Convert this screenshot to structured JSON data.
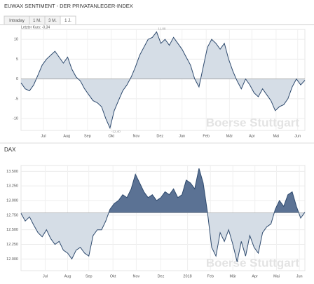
{
  "header": {
    "title": "EUWAX SENTIMENT - DER PRIVATANLEGER-INDEX",
    "tabs": [
      "Intraday",
      "1 M.",
      "3 M.",
      "1 J."
    ],
    "active_tab": 3,
    "last_price": "Letzter Kurs: -0,34"
  },
  "chart_data": [
    {
      "type": "area",
      "title": null,
      "watermark": "Boerse Stuttgart",
      "series": [
        {
          "name": "EUWAX Sentiment",
          "color": "#2e4a6e",
          "values": [
            -1,
            -2.5,
            -3,
            -1.5,
            1,
            3.5,
            5,
            6,
            7,
            5.5,
            4,
            5.5,
            2.5,
            0.5,
            -0.5,
            -2.5,
            -4,
            -5.5,
            -6,
            -7,
            -10,
            -12.4,
            -8,
            -5.5,
            -3,
            -1.5,
            0.5,
            3,
            6,
            8,
            10,
            10.5,
            11.89,
            9,
            10,
            8.5,
            10.5,
            9,
            7.5,
            5.5,
            3.5,
            0,
            -2,
            3,
            8,
            10,
            9,
            7.5,
            9,
            5,
            2,
            -0.5,
            -2.5,
            0,
            -1.5,
            -3.5,
            -4.5,
            -2.5,
            -4,
            -5.5,
            -8,
            -7,
            -6.5,
            -5,
            -2,
            0,
            -1.5,
            -0.34
          ]
        }
      ],
      "baseline": 0,
      "fill_above": "#d5dde6",
      "fill_below": "#d5dde6",
      "annotations": [
        {
          "label": "11,89",
          "index": 32
        },
        {
          "label": "-12,40",
          "index": 21
        }
      ],
      "xlim": [
        0,
        67
      ],
      "xticks": [
        {
          "value": 5.3,
          "label": "Jul"
        },
        {
          "value": 10.8,
          "label": "Aug"
        },
        {
          "value": 15.7,
          "label": "Sep"
        },
        {
          "value": 21.3,
          "label": "Okt"
        },
        {
          "value": 27.2,
          "label": "Nov"
        },
        {
          "value": 32.8,
          "label": "Dez"
        },
        {
          "value": 38,
          "label": "Jan"
        },
        {
          "value": 43.7,
          "label": "Feb"
        },
        {
          "value": 49.2,
          "label": "Mär"
        },
        {
          "value": 54.5,
          "label": "Apr"
        },
        {
          "value": 60.2,
          "label": "Mai"
        },
        {
          "value": 65.3,
          "label": "Jun"
        }
      ],
      "ylim": [
        -13,
        12.5
      ],
      "yticks": [
        10,
        5,
        0,
        -5,
        -10
      ],
      "grid": true
    },
    {
      "type": "area",
      "title": "DAX",
      "watermark": "Boerse Stuttgart",
      "series": [
        {
          "name": "DAX",
          "color": "#2e4a6e",
          "values": [
            12780,
            12650,
            12720,
            12580,
            12450,
            12380,
            12500,
            12350,
            12250,
            12300,
            12150,
            12100,
            12000,
            12150,
            12200,
            12100,
            12050,
            12400,
            12500,
            12500,
            12650,
            12850,
            12950,
            13000,
            13100,
            13050,
            13200,
            13450,
            13300,
            13150,
            13050,
            13100,
            13000,
            13050,
            13150,
            13100,
            13200,
            13050,
            13100,
            13350,
            13300,
            13200,
            13550,
            13300,
            12800,
            12200,
            12050,
            12450,
            12300,
            12500,
            12250,
            11950,
            12300,
            12050,
            12400,
            12200,
            12100,
            12450,
            12550,
            12600,
            12850,
            13000,
            12900,
            13100,
            13150,
            12900,
            12700,
            12800
          ]
        }
      ],
      "baseline": 12790,
      "fill_above": "#5b7294",
      "fill_below": "#d5dde6",
      "xlim": [
        0,
        67
      ],
      "xticks": [
        {
          "value": 5.7,
          "label": "Jul"
        },
        {
          "value": 11,
          "label": "Aug"
        },
        {
          "value": 16,
          "label": "Sep"
        },
        {
          "value": 21.7,
          "label": "Okt"
        },
        {
          "value": 27.2,
          "label": "Nov"
        },
        {
          "value": 33,
          "label": "Dez"
        },
        {
          "value": 39.3,
          "label": "2018"
        },
        {
          "value": 44.7,
          "label": "Feb"
        },
        {
          "value": 50,
          "label": "Mär"
        },
        {
          "value": 55.2,
          "label": "Apr"
        },
        {
          "value": 60.3,
          "label": "Mai"
        },
        {
          "value": 65.7,
          "label": "Jun"
        }
      ],
      "ylim": [
        11800,
        13600
      ],
      "yticks": [
        {
          "value": 13500,
          "label": "13.500"
        },
        {
          "value": 13250,
          "label": "13.250"
        },
        {
          "value": 13000,
          "label": "13.000"
        },
        {
          "value": 12750,
          "label": "12.750"
        },
        {
          "value": 12500,
          "label": "12.500"
        },
        {
          "value": 12250,
          "label": "12.250"
        },
        {
          "value": 12000,
          "label": "12.000"
        }
      ],
      "grid": true
    }
  ]
}
